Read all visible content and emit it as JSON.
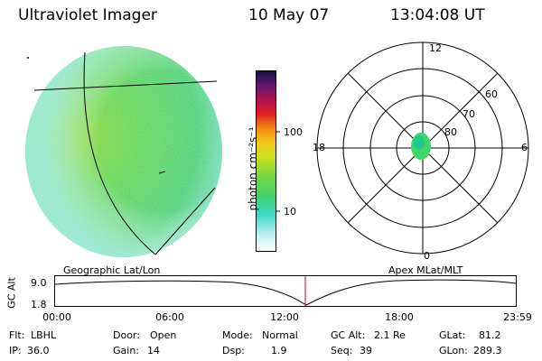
{
  "header": {
    "instrument": "Ultraviolet Imager",
    "date": "10 May 07",
    "time": "13:04:08 UT"
  },
  "colorbar": {
    "unit_label": "photon cm⁻²s⁻¹",
    "ticks": [
      "100",
      "10"
    ]
  },
  "polar_plot": {
    "title": "Apex MLat/MLT",
    "mlt_labels": {
      "top": "12",
      "left": "18",
      "right": "6",
      "bottom": "0"
    },
    "lat_labels": [
      "60",
      "70",
      "80"
    ]
  },
  "geo_image": {
    "title": "Geographic Lat/Lon"
  },
  "altitude_plot": {
    "ylabel": "GC Alt",
    "yticks": [
      "9.0",
      "1.8"
    ],
    "xticks": [
      "00:00",
      "06:00",
      "12:00",
      "18:00",
      "23:59"
    ]
  },
  "status": {
    "row1": [
      {
        "key": "Flt:",
        "value": "LBHL"
      },
      {
        "key": "Door:",
        "value": "Open"
      },
      {
        "key": "Mode:",
        "value": "Normal"
      },
      {
        "key": "GC Alt:",
        "value": "2.1 Re"
      },
      {
        "key": "GLat:",
        "value": "81.2"
      }
    ],
    "row2": [
      {
        "key": "IP:",
        "value": "36.0"
      },
      {
        "key": "Gain:",
        "value": "14"
      },
      {
        "key": "Dsp:",
        "value": "1.9"
      },
      {
        "key": "Seq:",
        "value": "39"
      },
      {
        "key": "GLon:",
        "value": "289.3"
      }
    ]
  },
  "colors": {
    "disk_main": "#5ed660",
    "disk_bright": "#9ad83a",
    "disk_edge": "#8fe6e0",
    "polar_spot": "#3ed86a",
    "altitude_marker": "#cc0000"
  }
}
